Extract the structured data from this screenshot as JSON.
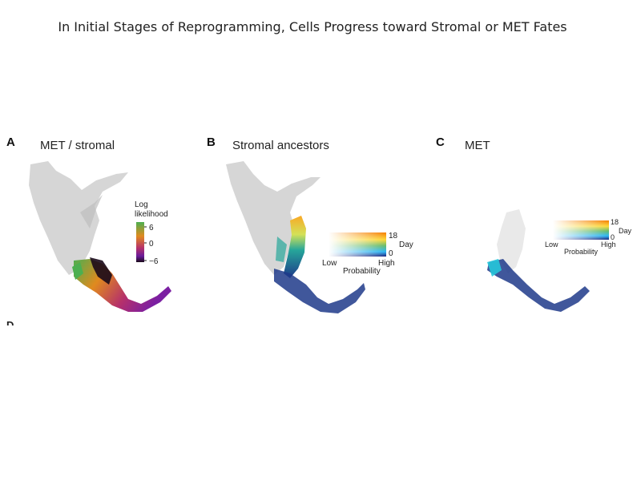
{
  "slide": {
    "title": "In Initial Stages of Reprogramming, Cells Progress toward Stromal or MET Fates"
  },
  "panels": [
    {
      "letter": "A",
      "title": "MET / stromal",
      "legend": {
        "label_line1": "Log",
        "label_line2": "likelihood",
        "ticks": [
          "6",
          "0",
          "−6"
        ]
      },
      "colors": [
        "#4caf50",
        "#e08a1e",
        "#b5306b",
        "#6a1b9a",
        "#1a0a1a"
      ]
    },
    {
      "letter": "B",
      "title": "Stromal ancestors",
      "legend": {
        "top_tick": "18",
        "bottom_tick": "0",
        "axis_label": "Day",
        "low": "Low",
        "high": "High",
        "xlabel": "Probability"
      }
    },
    {
      "letter": "C",
      "title": "MET",
      "legend": {
        "top_tick": "18",
        "bottom_tick": "0",
        "axis_label": "Day",
        "low": "Low",
        "high": "High",
        "xlabel": "Probability"
      }
    }
  ],
  "next_panel_letter": "D"
}
